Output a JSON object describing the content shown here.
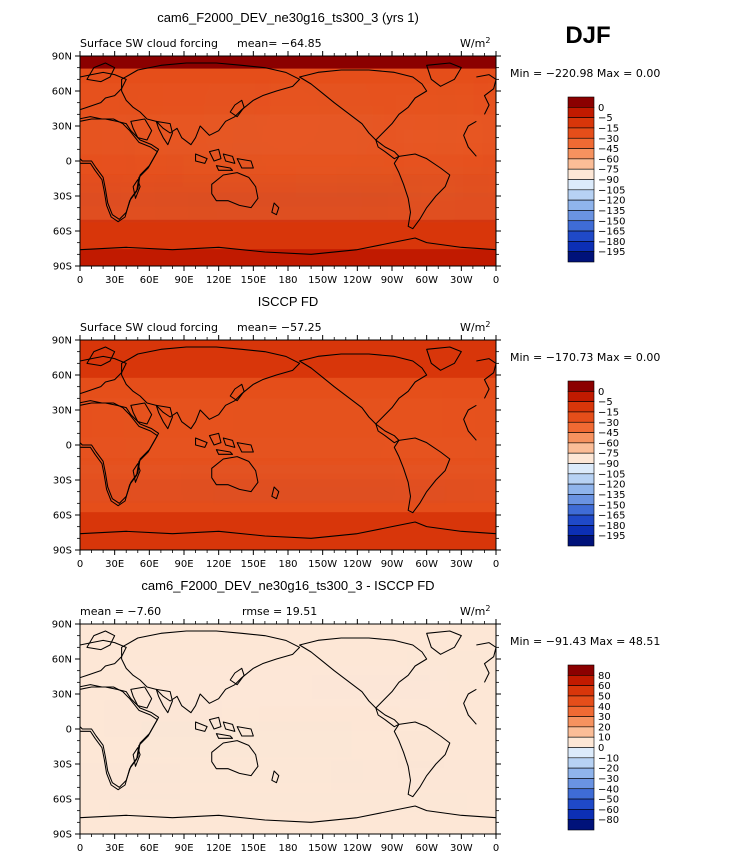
{
  "season": "DJF",
  "panels": [
    {
      "id": "model",
      "title": "cam6_F2000_DEV_ne30g16_ts300_3 (yrs 1)",
      "left_text": "Surface SW cloud forcing",
      "mean_text": "mean= −64.85",
      "rmse_text": "",
      "units": "W/m",
      "units_sup": "2",
      "minmax": "Min = −220.98 Max =    0.00",
      "colorbar_labels": [
        "0",
        "−5",
        "−15",
        "−30",
        "−45",
        "−60",
        "−75",
        "−90",
        "−105",
        "−120",
        "−135",
        "−150",
        "−165",
        "−180",
        "−195"
      ],
      "colorbar_colors": [
        "#8b0000",
        "#c11a00",
        "#d8360a",
        "#e54e1a",
        "#f06a33",
        "#f6925f",
        "#fbbd97",
        "#fde7d6",
        "#dcebfb",
        "#b7d2f4",
        "#8fb4ec",
        "#6a93e2",
        "#3f6cd6",
        "#1f49c8",
        "#0c2fb5",
        "#00127a"
      ]
    },
    {
      "id": "obs",
      "title": "ISCCP FD",
      "left_text": "Surface SW cloud forcing",
      "mean_text": "mean= −57.25",
      "rmse_text": "",
      "units": "W/m",
      "units_sup": "2",
      "minmax": "Min = −170.73 Max =    0.00",
      "colorbar_labels": [
        "0",
        "−5",
        "−15",
        "−30",
        "−45",
        "−60",
        "−75",
        "−90",
        "−105",
        "−120",
        "−135",
        "−150",
        "−165",
        "−180",
        "−195"
      ],
      "colorbar_colors": [
        "#8b0000",
        "#c11a00",
        "#d8360a",
        "#e54e1a",
        "#f06a33",
        "#f6925f",
        "#fbbd97",
        "#fde7d6",
        "#dcebfb",
        "#b7d2f4",
        "#8fb4ec",
        "#6a93e2",
        "#3f6cd6",
        "#1f49c8",
        "#0c2fb5",
        "#00127a"
      ]
    },
    {
      "id": "diff",
      "title": "cam6_F2000_DEV_ne30g16_ts300_3 - ISCCP FD",
      "left_text": "mean =   −7.60",
      "mean_text": "",
      "rmse_text": "rmse =   19.51",
      "units": "W/m",
      "units_sup": "2",
      "minmax": "Min = −91.43 Max =   48.51",
      "colorbar_labels": [
        "80",
        "60",
        "50",
        "40",
        "30",
        "20",
        "10",
        "0",
        "−10",
        "−20",
        "−30",
        "−40",
        "−50",
        "−60",
        "−80"
      ],
      "colorbar_colors": [
        "#8b0000",
        "#c11a00",
        "#d8360a",
        "#e54e1a",
        "#f06a33",
        "#f6925f",
        "#fbbd97",
        "#fde7d6",
        "#dcebfb",
        "#b7d2f4",
        "#8fb4ec",
        "#6a93e2",
        "#3f6cd6",
        "#1f49c8",
        "#0c2fb5",
        "#00127a"
      ]
    }
  ],
  "lat_labels": [
    "90N",
    "60N",
    "30N",
    "0",
    "30S",
    "60S",
    "90S"
  ],
  "lon_labels": [
    "0",
    "30E",
    "60E",
    "90E",
    "120E",
    "150E",
    "180",
    "150W",
    "120W",
    "90W",
    "60W",
    "30W",
    "0"
  ]
}
